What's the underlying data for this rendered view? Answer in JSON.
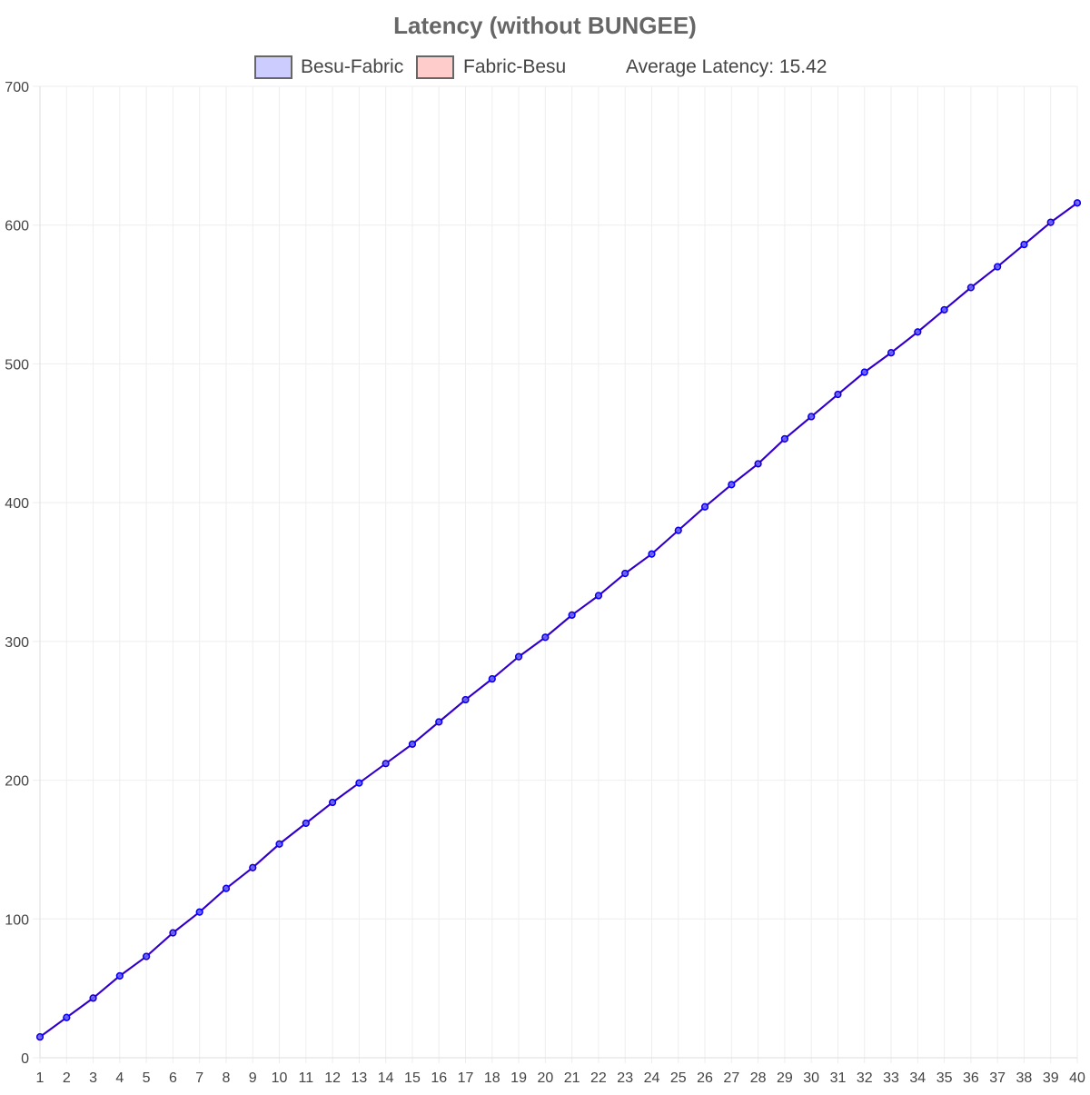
{
  "chart_data": {
    "type": "line",
    "title": "Latency (without BUNGEE)",
    "legend": {
      "placement": "top-center",
      "items": [
        {
          "label": "Besu-Fabric",
          "fill": "#ccccff",
          "stroke": "#666666"
        },
        {
          "label": "Fabric-Besu",
          "fill": "#ffcccc",
          "stroke": "#666666"
        }
      ],
      "annotation": "Average Latency: 15.42"
    },
    "xlabel": "",
    "ylabel": "",
    "x": [
      1,
      2,
      3,
      4,
      5,
      6,
      7,
      8,
      9,
      10,
      11,
      12,
      13,
      14,
      15,
      16,
      17,
      18,
      19,
      20,
      21,
      22,
      23,
      24,
      25,
      26,
      27,
      28,
      29,
      30,
      31,
      32,
      33,
      34,
      35,
      36,
      37,
      38,
      39,
      40
    ],
    "ylim": [
      0,
      700
    ],
    "yticks": [
      0,
      100,
      200,
      300,
      400,
      500,
      600,
      700
    ],
    "grid": true,
    "series": [
      {
        "name": "Besu-Fabric",
        "color": "#0000ff",
        "values": [
          15,
          29,
          43,
          59,
          73,
          90,
          105,
          122,
          137,
          154,
          169,
          184,
          198,
          212,
          226,
          242,
          258,
          273,
          289,
          303,
          319,
          333,
          349,
          363,
          380,
          397,
          413,
          428,
          446,
          462,
          478,
          494,
          508,
          523,
          539,
          555,
          570,
          586,
          602,
          616
        ]
      },
      {
        "name": "Fabric-Besu",
        "color": "#ff0000",
        "values": [
          15,
          29,
          43,
          59,
          73,
          90,
          105,
          122,
          137,
          154,
          169,
          184,
          198,
          212,
          226,
          242,
          258,
          273,
          289,
          303,
          319,
          333,
          349,
          363,
          380,
          397,
          413,
          428,
          446,
          462,
          478,
          494,
          508,
          523,
          539,
          555,
          570,
          586,
          602,
          616
        ]
      }
    ]
  }
}
